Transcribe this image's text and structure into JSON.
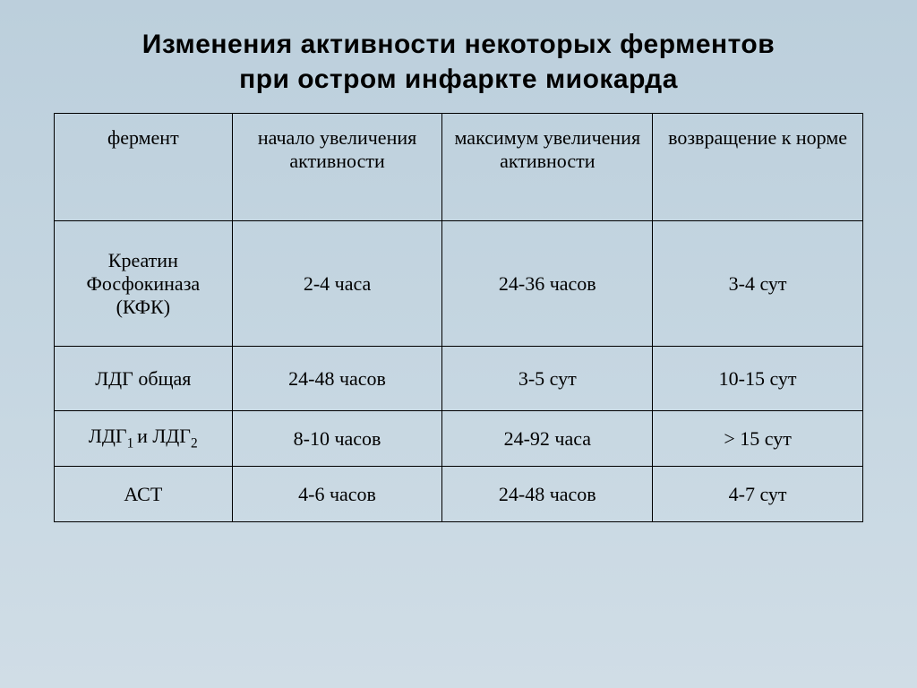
{
  "title_line1": "Изменения активности  некоторых ферментов",
  "title_line2": "при остром инфаркте миокарда",
  "columns": [
    "фермент",
    "начало увеличения активности",
    "максимум увеличения активности",
    "возвращение к норме"
  ],
  "rows": [
    {
      "enzyme_html": "Креатин<br>Фосфокиназа<br>(КФК)",
      "onset": "2-4 часа",
      "peak": "24-36 часов",
      "return": "3-4 сут",
      "row_class": "row-tall"
    },
    {
      "enzyme_html": "ЛДГ общая",
      "onset": "24-48 часов",
      "peak": "3-5 сут",
      "return": "10-15 сут",
      "row_class": "row-med"
    },
    {
      "enzyme_html": "ЛДГ<sub>1 </sub>и ЛДГ<sub>2</sub>",
      "onset": "8-10 часов",
      "peak": "24-92 часа",
      "return": "> 15 сут",
      "row_class": "row-short"
    },
    {
      "enzyme_html": "АСТ",
      "onset": "4-6 часов",
      "peak": "24-48 часов",
      "return": "4-7 сут",
      "row_class": "row-short"
    }
  ],
  "styling": {
    "background_gradient": [
      "#bccfdc",
      "#c5d6e1",
      "#d0dde6"
    ],
    "border_color": "#000000",
    "title_fontsize": 30,
    "title_fontweight": "bold",
    "header_fontsize": 22,
    "cell_fontsize": 22,
    "font_title": "Verdana",
    "font_table": "Times New Roman",
    "col_widths_pct": [
      22,
      26,
      26,
      26
    ]
  }
}
